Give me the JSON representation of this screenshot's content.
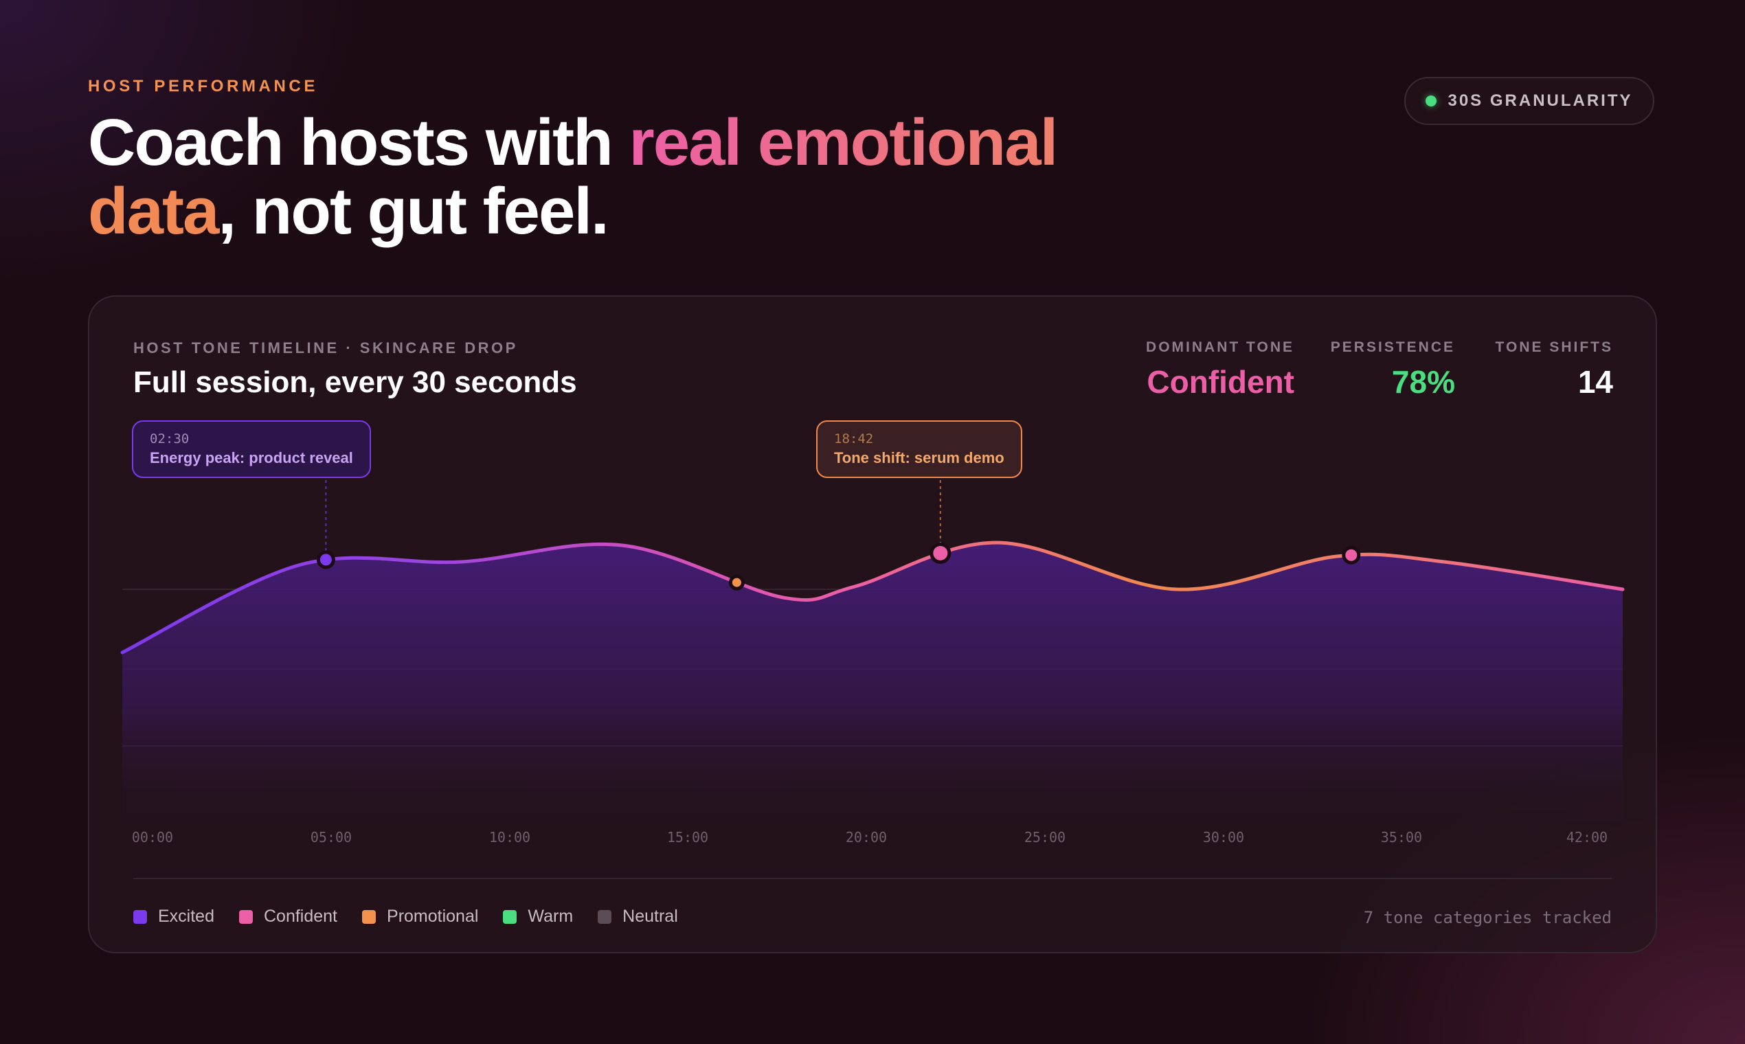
{
  "header": {
    "eyebrow": "HOST PERFORMANCE",
    "headline": {
      "part1": "Coach hosts with ",
      "highlight1": "real emotional",
      "highlight2": "data",
      "part2": ", not gut feel."
    },
    "granularity_badge": "30S GRANULARITY"
  },
  "card": {
    "eyebrow": "HOST TONE TIMELINE · SKINCARE DROP",
    "title": "Full session, every 30 seconds",
    "stats": [
      {
        "label": "DOMINANT TONE",
        "value": "Confident",
        "color": "#ec5fa6"
      },
      {
        "label": "PERSISTENCE",
        "value": "78%",
        "color": "#4ade80"
      },
      {
        "label": "TONE SHIFTS",
        "value": "14",
        "color": "#ffffff"
      }
    ],
    "callouts": [
      {
        "time": "02:30",
        "label": "Energy peak: product reveal"
      },
      {
        "time": "18:42",
        "label": "Tone shift: serum demo"
      }
    ],
    "legend": [
      {
        "label": "Excited",
        "color": "#7c3aed"
      },
      {
        "label": "Confident",
        "color": "#ec5fa6"
      },
      {
        "label": "Promotional",
        "color": "#f2924d"
      },
      {
        "label": "Warm",
        "color": "#4ade80"
      },
      {
        "label": "Neutral",
        "color": "#5a4d55"
      }
    ],
    "footnote": "7 tone categories tracked"
  },
  "chart_data": {
    "type": "area",
    "x_ticks": [
      "00:00",
      "05:00",
      "10:00",
      "15:00",
      "20:00",
      "25:00",
      "30:00",
      "35:00",
      "42:00"
    ],
    "x": [
      0,
      5,
      9.5,
      14,
      18.5,
      20.5,
      24.5,
      29.5,
      34,
      37,
      42
    ],
    "values": [
      0.56,
      0.88,
      0.89,
      0.95,
      0.76,
      0.8,
      0.96,
      0.79,
      0.91,
      0.89,
      0.79
    ],
    "ylim": [
      0,
      1
    ],
    "markers": [
      {
        "x": 5.7,
        "tone": "Excited",
        "color": "#7c3aed"
      },
      {
        "x": 17.2,
        "tone": "Promotional",
        "color": "#f2924d"
      },
      {
        "x": 22.9,
        "tone": "Confident",
        "color": "#ec5fa6"
      },
      {
        "x": 34.4,
        "tone": "Confident",
        "color": "#ec5fa6"
      }
    ],
    "grid": true,
    "xlabel": "",
    "ylabel": ""
  }
}
